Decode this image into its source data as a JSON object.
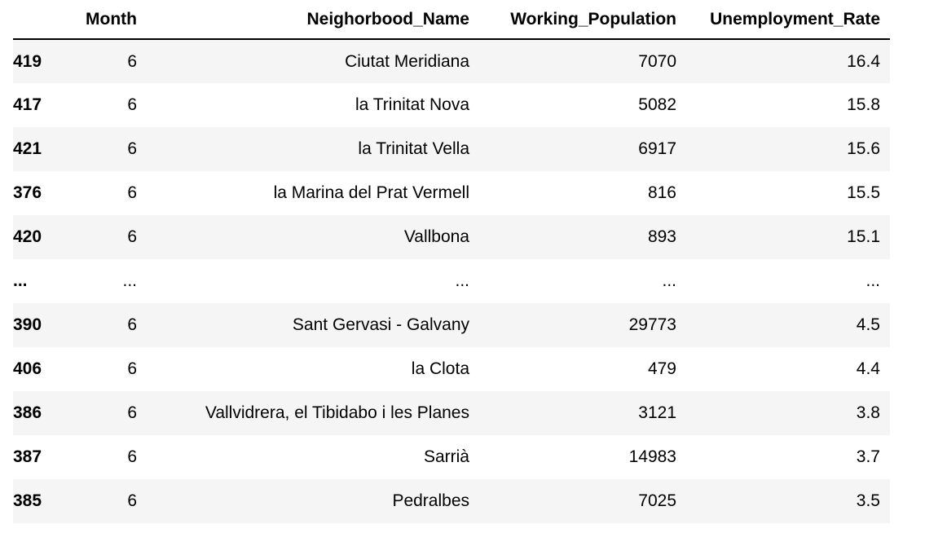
{
  "table": {
    "columns": [
      "",
      "Month",
      "Neighorbood_Name",
      "Working_Population",
      "Unemployment_Rate"
    ],
    "rows": [
      {
        "index": "419",
        "month": "6",
        "name": "Ciutat Meridiana",
        "population": "7070",
        "rate": "16.4"
      },
      {
        "index": "417",
        "month": "6",
        "name": "la Trinitat Nova",
        "population": "5082",
        "rate": "15.8"
      },
      {
        "index": "421",
        "month": "6",
        "name": "la Trinitat Vella",
        "population": "6917",
        "rate": "15.6"
      },
      {
        "index": "376",
        "month": "6",
        "name": "la Marina del Prat Vermell",
        "population": "816",
        "rate": "15.5"
      },
      {
        "index": "420",
        "month": "6",
        "name": "Vallbona",
        "population": "893",
        "rate": "15.1"
      },
      {
        "index": "...",
        "month": "...",
        "name": "...",
        "population": "...",
        "rate": "..."
      },
      {
        "index": "390",
        "month": "6",
        "name": "Sant Gervasi - Galvany",
        "population": "29773",
        "rate": "4.5"
      },
      {
        "index": "406",
        "month": "6",
        "name": "la Clota",
        "population": "479",
        "rate": "4.4"
      },
      {
        "index": "386",
        "month": "6",
        "name": "Vallvidrera, el Tibidabo i les Planes",
        "population": "3121",
        "rate": "3.8"
      },
      {
        "index": "387",
        "month": "6",
        "name": "Sarrià",
        "population": "14983",
        "rate": "3.7"
      },
      {
        "index": "385",
        "month": "6",
        "name": "Pedralbes",
        "population": "7025",
        "rate": "3.5"
      }
    ]
  }
}
